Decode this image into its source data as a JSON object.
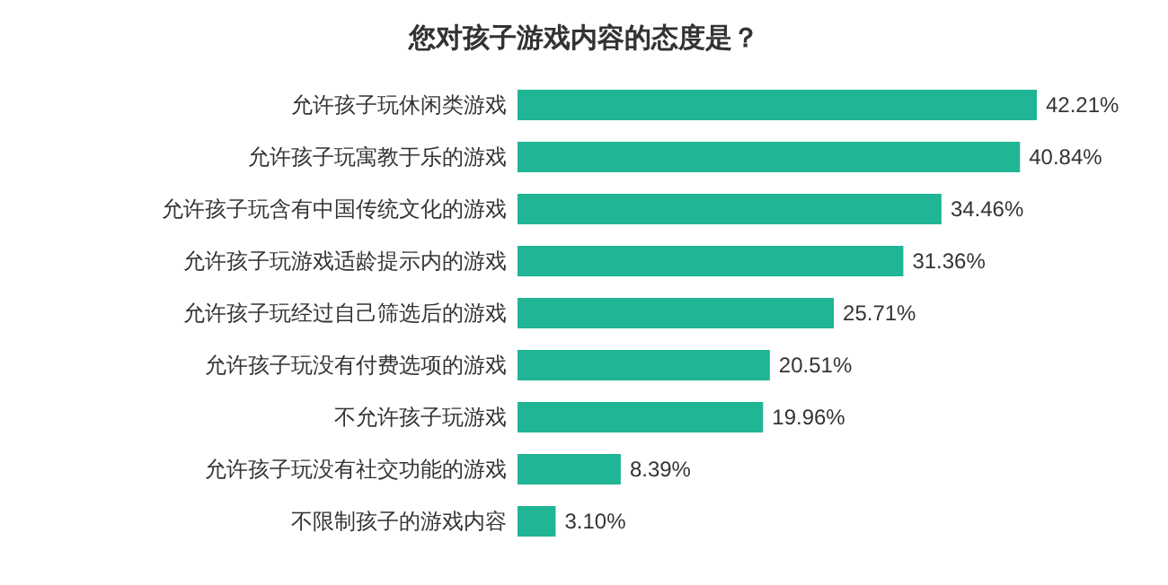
{
  "chart_data": {
    "type": "bar",
    "orientation": "horizontal",
    "title": "您对孩子游戏内容的态度是？",
    "categories": [
      "允许孩子玩休闲类游戏",
      "允许孩子玩寓教于乐的游戏",
      "允许孩子玩含有中国传统文化的游戏",
      "允许孩子玩游戏适龄提示内的游戏",
      "允许孩子玩经过自己筛选后的游戏",
      "允许孩子玩没有付费选项的游戏",
      "不允许孩子玩游戏",
      "允许孩子玩没有社交功能的游戏",
      "不限制孩子的游戏内容"
    ],
    "values": [
      42.21,
      40.84,
      34.46,
      31.36,
      25.71,
      20.51,
      19.96,
      8.39,
      3.1
    ],
    "value_labels": [
      "42.21%",
      "40.84%",
      "34.46%",
      "31.36%",
      "25.71%",
      "20.51%",
      "19.96%",
      "8.39%",
      "3.10%"
    ],
    "color": "#1fb595"
  }
}
